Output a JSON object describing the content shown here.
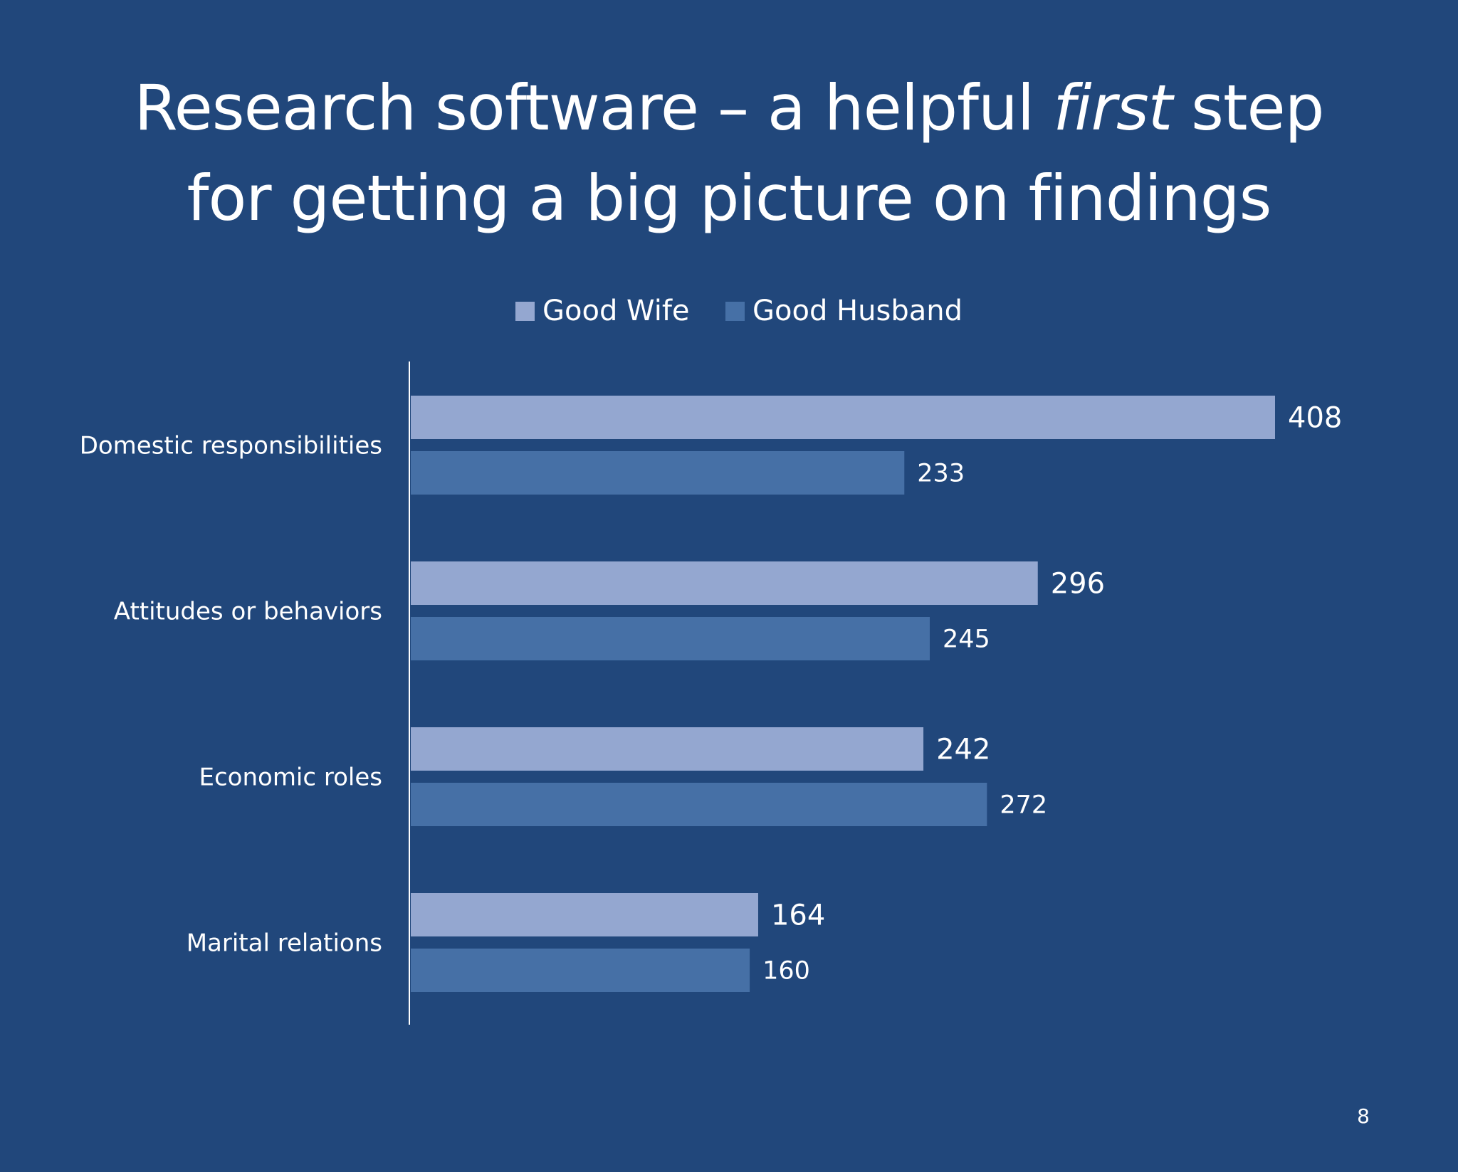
{
  "slide": {
    "title_line1_before": "Research software – a helpful ",
    "title_line1_emphasis": "first",
    "title_line1_after": " step",
    "title_line2": "for getting a big picture on findings",
    "page_number": "8"
  },
  "colors": {
    "background": "#21477b",
    "good_wife": "#94a7d0",
    "good_husband": "#4670a6",
    "text": "#ffffff"
  },
  "chart_data": {
    "type": "bar",
    "orientation": "horizontal",
    "categories": [
      "Domestic responsibilities",
      "Attitudes or behaviors",
      "Economic roles",
      "Marital relations"
    ],
    "series": [
      {
        "name": "Good Wife",
        "values": [
          408,
          296,
          242,
          164
        ],
        "color": "#94a7d0"
      },
      {
        "name": "Good Husband",
        "values": [
          233,
          245,
          272,
          160
        ],
        "color": "#4670a6"
      }
    ],
    "legend": "top-center",
    "data_labels": true,
    "grid": false,
    "xlim": [
      0,
      450
    ]
  }
}
